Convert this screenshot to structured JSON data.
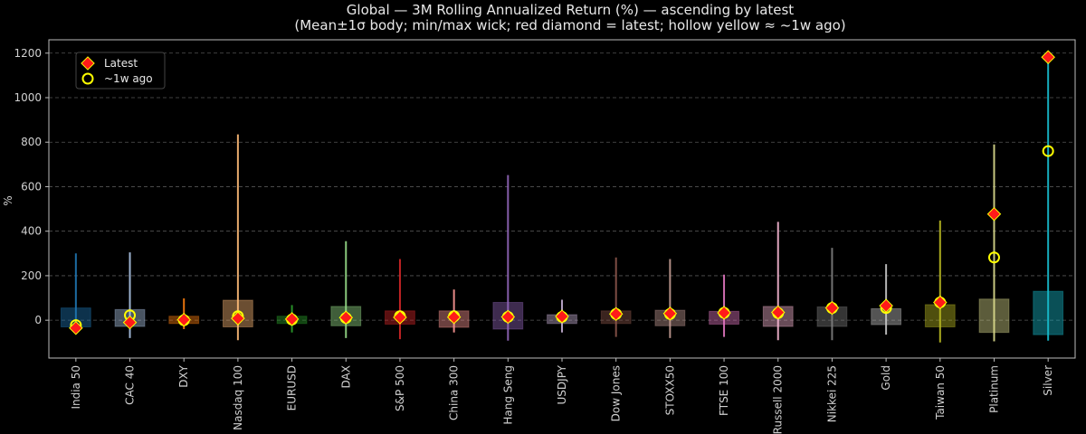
{
  "chart_data": {
    "type": "boxplot",
    "title": "Global — 3M Rolling Annualized Return (%) — ascending by latest",
    "subtitle": "(Mean±1σ body; min/max wick; red diamond = latest; hollow yellow ≈ ~1w ago)",
    "xlabel": "",
    "ylabel": "%",
    "ylim": [
      -170,
      1260
    ],
    "yticks": [
      0,
      200,
      400,
      600,
      800,
      1000,
      1200
    ],
    "grid": true,
    "legend": {
      "position": "top-left",
      "latest_label": "Latest",
      "week_ago_label": "~1w ago"
    },
    "colors": {
      "background": "#000000",
      "latest": "#ff1a1a",
      "week_ago": "#ffff00",
      "grid": "#555555"
    },
    "series": [
      {
        "name": "India 50",
        "color": "#1f77b4",
        "box_low": -30,
        "box_high": 55,
        "min": -40,
        "max": 300,
        "latest": -35,
        "week_ago": -22
      },
      {
        "name": "CAC 40",
        "color": "#aec7e8",
        "box_low": -28,
        "box_high": 48,
        "min": -80,
        "max": 305,
        "latest": -10,
        "week_ago": 22
      },
      {
        "name": "DXY",
        "color": "#ff7f0e",
        "box_low": -15,
        "box_high": 18,
        "min": -40,
        "max": 98,
        "latest": 2,
        "week_ago": 0
      },
      {
        "name": "Nasdaq 100",
        "color": "#ffbb78",
        "box_low": -30,
        "box_high": 90,
        "min": -90,
        "max": 835,
        "latest": 8,
        "week_ago": 18
      },
      {
        "name": "EURUSD",
        "color": "#2ca02c",
        "box_low": -15,
        "box_high": 18,
        "min": -55,
        "max": 68,
        "latest": 5,
        "week_ago": 3
      },
      {
        "name": "DAX",
        "color": "#98df8a",
        "box_low": -25,
        "box_high": 62,
        "min": -80,
        "max": 355,
        "latest": 12,
        "week_ago": 10
      },
      {
        "name": "S&P 500",
        "color": "#d62728",
        "box_low": -18,
        "box_high": 42,
        "min": -85,
        "max": 275,
        "latest": 13,
        "week_ago": 18
      },
      {
        "name": "China 300",
        "color": "#ff9896",
        "box_low": -32,
        "box_high": 42,
        "min": -55,
        "max": 138,
        "latest": 14,
        "week_ago": 18
      },
      {
        "name": "Hang Seng",
        "color": "#9467bd",
        "box_low": -40,
        "box_high": 80,
        "min": -92,
        "max": 652,
        "latest": 15,
        "week_ago": 15
      },
      {
        "name": "USDJPY",
        "color": "#c5b0d5",
        "box_low": -15,
        "box_high": 25,
        "min": -55,
        "max": 92,
        "latest": 17,
        "week_ago": 15
      },
      {
        "name": "Dow Jones",
        "color": "#8c564b",
        "box_low": -15,
        "box_high": 42,
        "min": -75,
        "max": 282,
        "latest": 28,
        "week_ago": 28
      },
      {
        "name": "STOXX50",
        "color": "#c49c94",
        "box_low": -25,
        "box_high": 45,
        "min": -80,
        "max": 275,
        "latest": 30,
        "week_ago": 28
      },
      {
        "name": "FTSE 100",
        "color": "#e377c2",
        "box_low": -18,
        "box_high": 40,
        "min": -75,
        "max": 205,
        "latest": 33,
        "week_ago": 33
      },
      {
        "name": "Russell 2000",
        "color": "#f7b6d2",
        "box_low": -28,
        "box_high": 62,
        "min": -90,
        "max": 442,
        "latest": 35,
        "week_ago": 32
      },
      {
        "name": "Nikkei 225",
        "color": "#7f7f7f",
        "box_low": -28,
        "box_high": 60,
        "min": -90,
        "max": 325,
        "latest": 55,
        "week_ago": 55
      },
      {
        "name": "Gold",
        "color": "#c7c7c7",
        "box_low": -20,
        "box_high": 52,
        "min": -65,
        "max": 252,
        "latest": 65,
        "week_ago": 55
      },
      {
        "name": "Taiwan 50",
        "color": "#bcbd22",
        "box_low": -30,
        "box_high": 70,
        "min": -100,
        "max": 448,
        "latest": 80,
        "week_ago": 80
      },
      {
        "name": "Platinum",
        "color": "#dbdb8d",
        "box_low": -55,
        "box_high": 95,
        "min": -95,
        "max": 790,
        "latest": 477,
        "week_ago": 282
      },
      {
        "name": "Silver",
        "color": "#17becf",
        "box_low": -65,
        "box_high": 130,
        "min": -92,
        "max": 1180,
        "latest": 1182,
        "week_ago": 760
      }
    ]
  }
}
